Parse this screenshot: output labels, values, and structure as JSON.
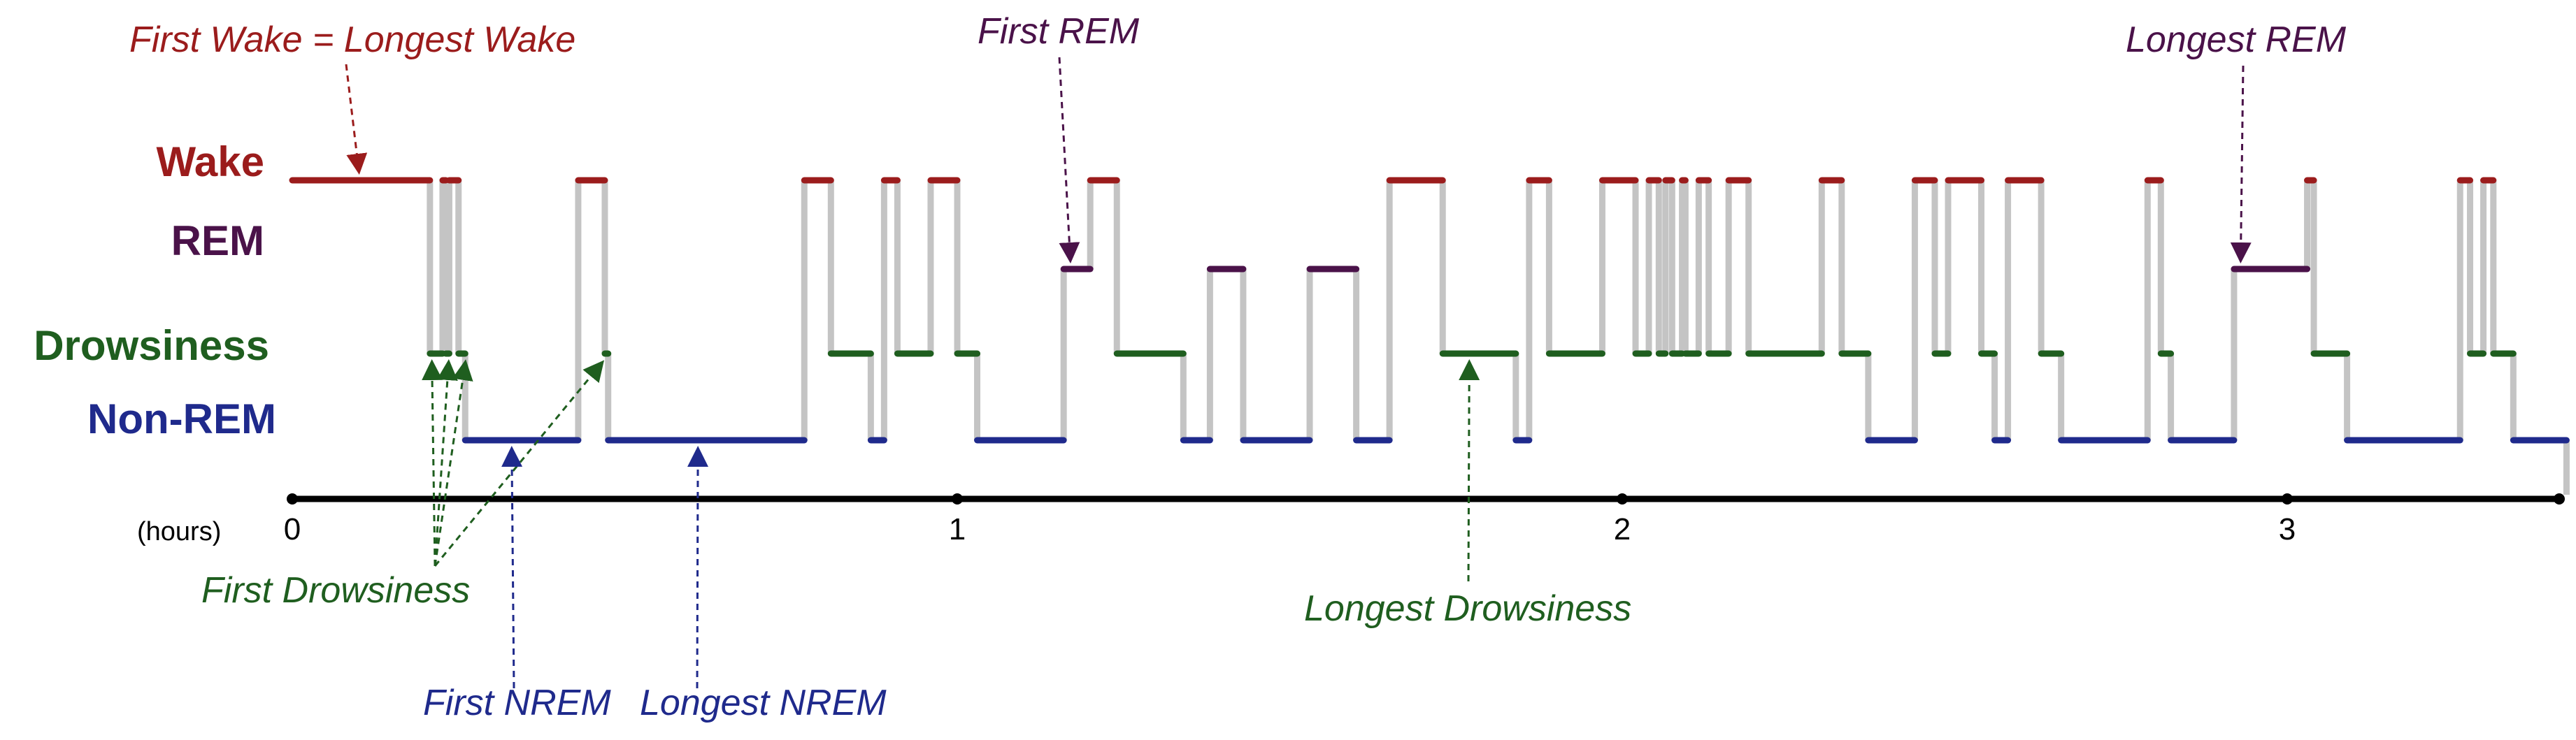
{
  "chart_data": {
    "type": "line",
    "title": "",
    "xlabel": "(hours)",
    "ylabel": "",
    "xlim": [
      0,
      3.42
    ],
    "x_ticks": [
      "0",
      "1",
      "2",
      "3"
    ],
    "grid": false,
    "stages": [
      {
        "key": "wake",
        "label": "Wake",
        "color": "#9b1c1c"
      },
      {
        "key": "rem",
        "label": "REM",
        "color": "#4a1249"
      },
      {
        "key": "drowsiness",
        "label": "Drowsiness",
        "color": "#1f5e1f"
      },
      {
        "key": "nrem",
        "label": "Non-REM",
        "color": "#1f2a8c"
      }
    ],
    "connector_color": "#c4c4c4",
    "hypnogram": [
      [
        0.0,
        "wake"
      ],
      [
        0.207,
        "drowsiness"
      ],
      [
        0.226,
        "wake"
      ],
      [
        0.231,
        "drowsiness"
      ],
      [
        0.236,
        "wake"
      ],
      [
        0.25,
        "drowsiness"
      ],
      [
        0.26,
        "nrem"
      ],
      [
        0.43,
        "wake"
      ],
      [
        0.47,
        "drowsiness"
      ],
      [
        0.475,
        "nrem"
      ],
      [
        0.77,
        "wake"
      ],
      [
        0.81,
        "drowsiness"
      ],
      [
        0.87,
        "nrem"
      ],
      [
        0.89,
        "wake"
      ],
      [
        0.91,
        "drowsiness"
      ],
      [
        0.96,
        "wake"
      ],
      [
        1.0,
        "drowsiness"
      ],
      [
        1.03,
        "nrem"
      ],
      [
        1.16,
        "rem"
      ],
      [
        1.2,
        "wake"
      ],
      [
        1.24,
        "drowsiness"
      ],
      [
        1.34,
        "nrem"
      ],
      [
        1.38,
        "rem"
      ],
      [
        1.43,
        "nrem"
      ],
      [
        1.53,
        "rem"
      ],
      [
        1.6,
        "nrem"
      ],
      [
        1.65,
        "wake"
      ],
      [
        1.73,
        "drowsiness"
      ],
      [
        1.84,
        "nrem"
      ],
      [
        1.86,
        "wake"
      ],
      [
        1.89,
        "drowsiness"
      ],
      [
        1.97,
        "wake"
      ],
      [
        2.02,
        "drowsiness"
      ],
      [
        2.04,
        "wake"
      ],
      [
        2.055,
        "drowsiness"
      ],
      [
        2.065,
        "wake"
      ],
      [
        2.075,
        "drowsiness"
      ],
      [
        2.09,
        "wake"
      ],
      [
        2.095,
        "drowsiness"
      ],
      [
        2.115,
        "wake"
      ],
      [
        2.13,
        "drowsiness"
      ],
      [
        2.16,
        "wake"
      ],
      [
        2.19,
        "drowsiness"
      ],
      [
        2.3,
        "wake"
      ],
      [
        2.33,
        "drowsiness"
      ],
      [
        2.37,
        "nrem"
      ],
      [
        2.44,
        "wake"
      ],
      [
        2.47,
        "drowsiness"
      ],
      [
        2.49,
        "wake"
      ],
      [
        2.54,
        "drowsiness"
      ],
      [
        2.56,
        "nrem"
      ],
      [
        2.58,
        "wake"
      ],
      [
        2.63,
        "drowsiness"
      ],
      [
        2.66,
        "nrem"
      ],
      [
        2.79,
        "wake"
      ],
      [
        2.81,
        "drowsiness"
      ],
      [
        2.825,
        "nrem"
      ],
      [
        2.92,
        "rem"
      ],
      [
        3.03,
        "wake"
      ],
      [
        3.04,
        "drowsiness"
      ],
      [
        3.09,
        "nrem"
      ],
      [
        3.26,
        "wake"
      ],
      [
        3.275,
        "drowsiness"
      ],
      [
        3.295,
        "wake"
      ],
      [
        3.31,
        "drowsiness"
      ],
      [
        3.34,
        "nrem"
      ],
      [
        3.42,
        "end"
      ]
    ],
    "annotations": [
      {
        "text": "First Wake = Longest Wake",
        "color": "#9b1c1c",
        "points_to": [
          [
            0.1,
            "wake"
          ]
        ]
      },
      {
        "text": "First REM",
        "color": "#4a1249",
        "points_to": [
          [
            1.17,
            "rem"
          ]
        ]
      },
      {
        "text": "Longest REM",
        "color": "#4a1249",
        "points_to": [
          [
            2.93,
            "rem"
          ]
        ]
      },
      {
        "text": "First Drowsiness",
        "color": "#1f5e1f",
        "points_to": [
          [
            0.21,
            "drowsiness"
          ],
          [
            0.235,
            "drowsiness"
          ],
          [
            0.26,
            "drowsiness"
          ],
          [
            0.465,
            "drowsiness"
          ]
        ]
      },
      {
        "text": "Longest Drowsiness",
        "color": "#1f5e1f",
        "points_to": [
          [
            1.77,
            "drowsiness"
          ]
        ]
      },
      {
        "text": "First NREM",
        "color": "#1f2a8c",
        "points_to": [
          [
            0.33,
            "nrem"
          ]
        ]
      },
      {
        "text": "Longest NREM",
        "color": "#1f2a8c",
        "points_to": [
          [
            0.61,
            "nrem"
          ]
        ]
      }
    ]
  }
}
